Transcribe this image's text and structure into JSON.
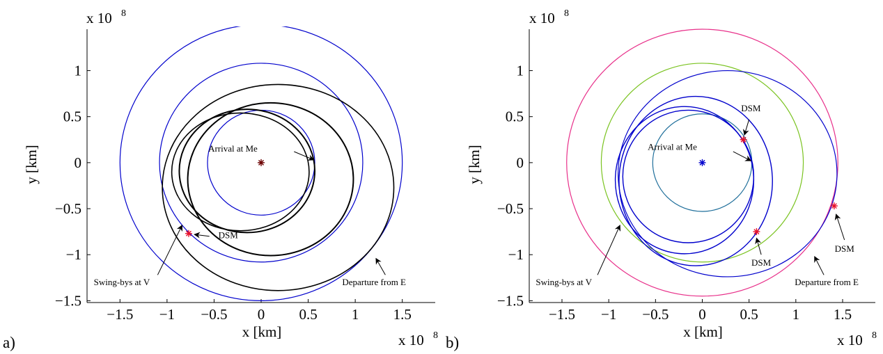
{
  "chart_data": [
    {
      "type": "line",
      "panel_label": "a)",
      "xlabel": "x [km]",
      "ylabel": "y [km]",
      "x_exponent_label": "x 10",
      "x_exponent_power": "8",
      "y_exponent_label": "x 10",
      "y_exponent_power": "8",
      "xlim": [
        -1.85,
        1.85
      ],
      "ylim": [
        -1.52,
        1.45
      ],
      "xticks": [
        -1.5,
        -1,
        -0.5,
        0,
        0.5,
        1,
        1.5
      ],
      "xtick_labels": [
        "−1.5",
        "−1",
        "−0.5",
        "0",
        "0.5",
        "1",
        "1.5"
      ],
      "yticks": [
        -1.5,
        -1,
        -0.5,
        0,
        0.5,
        1
      ],
      "ytick_labels": [
        "−1.5",
        "−1",
        "−0.5",
        "0",
        "0.5",
        "1"
      ],
      "grid": false,
      "colors": {
        "planet_orbit": "#0000cc",
        "trajectory": "#000000",
        "dsm_marker": "#e8102a",
        "sun_marker": "#6b0000"
      },
      "circles": [
        {
          "role": "planet orbit",
          "cx": 0,
          "cy": 0,
          "r": 1.5,
          "color": "#0000cc"
        },
        {
          "role": "planet orbit",
          "cx": 0,
          "cy": 0,
          "r": 1.08,
          "color": "#0000cc"
        },
        {
          "role": "planet orbit",
          "cx": 0,
          "cy": 0,
          "r": 0.57,
          "color": "#0000cc"
        }
      ],
      "ellipses": [
        {
          "role": "trajectory arc",
          "cx": 0.18,
          "cy": -0.27,
          "rx": 1.23,
          "ry": 1.12,
          "color": "#000000",
          "width": 1.6
        },
        {
          "role": "trajectory arc",
          "cx": 0.1,
          "cy": -0.18,
          "rx": 0.88,
          "ry": 0.83,
          "color": "#000000",
          "width": 2.0
        },
        {
          "role": "trajectory arc",
          "cx": -0.15,
          "cy": -0.09,
          "rx": 0.72,
          "ry": 0.67,
          "color": "#000000",
          "width": 2.0
        },
        {
          "role": "trajectory arc",
          "cx": -0.22,
          "cy": -0.1,
          "rx": 0.73,
          "ry": 0.64,
          "color": "#000000",
          "width": 1.6
        }
      ],
      "markers": [
        {
          "label": "Sun",
          "x": 0,
          "y": 0,
          "color": "#6b0000"
        },
        {
          "label": "DSM",
          "x": -0.77,
          "y": -0.77,
          "color": "#e8102a"
        }
      ],
      "annotations": [
        {
          "text": "Arrival at Me",
          "text_x": -0.3,
          "text_y": 0.12,
          "arrow_from": [
            0.35,
            0.12
          ],
          "arrow_to": [
            0.56,
            0.03
          ]
        },
        {
          "text": "DSM",
          "text_x": -0.35,
          "text_y": -0.82,
          "arrow_from": [
            -0.55,
            -0.8
          ],
          "arrow_to": [
            -0.71,
            -0.78
          ]
        },
        {
          "text": "Swing-bys at V",
          "text_x": -1.48,
          "text_y": -1.33,
          "arrow_from": [
            -1.1,
            -1.22
          ],
          "arrow_to": [
            -0.84,
            -0.68
          ]
        },
        {
          "text": "Departure from E",
          "text_x": 1.2,
          "text_y": -1.33,
          "arrow_from": [
            1.32,
            -1.22
          ],
          "arrow_to": [
            1.22,
            -1.04
          ]
        }
      ]
    },
    {
      "type": "line",
      "panel_label": "b)",
      "xlabel": "x [km]",
      "ylabel": "y [km]",
      "x_exponent_label": "x 10",
      "x_exponent_power": "8",
      "y_exponent_label": "x 10",
      "y_exponent_power": "8",
      "xlim": [
        -1.85,
        1.85
      ],
      "ylim": [
        -1.52,
        1.45
      ],
      "xticks": [
        -1.5,
        -1,
        -0.5,
        0,
        0.5,
        1,
        1.5
      ],
      "xtick_labels": [
        "−1.5",
        "−1",
        "−0.5",
        "0",
        "0.5",
        "1",
        "1.5"
      ],
      "yticks": [
        -1.5,
        -1,
        -0.5,
        0,
        0.5,
        1
      ],
      "ytick_labels": [
        "−1.5",
        "−1",
        "−0.5",
        "0",
        "0.5",
        "1"
      ],
      "grid": false,
      "colors": {
        "earth_orbit": "#e8308a",
        "venus_orbit": "#7ac320",
        "mercury_orbit": "#1e6e9a",
        "trajectory": "#0000cc",
        "dsm_marker": "#e8102a",
        "sun_marker": "#0000cc"
      },
      "circles": [
        {
          "role": "Earth orbit",
          "cx": 0,
          "cy": 0,
          "r": 1.45,
          "color": "#e8308a"
        },
        {
          "role": "Venus orbit",
          "cx": 0,
          "cy": 0,
          "r": 1.08,
          "color": "#7ac320"
        },
        {
          "role": "Mercury orbit",
          "cx": 0,
          "cy": 0,
          "r": 0.53,
          "color": "#1e6e9a"
        }
      ],
      "ellipses": [
        {
          "role": "trajectory arc",
          "cx": 0.27,
          "cy": -0.12,
          "rx": 1.17,
          "ry": 1.12,
          "color": "#0000cc",
          "width": 1.2
        },
        {
          "role": "trajectory arc",
          "cx": -0.07,
          "cy": -0.2,
          "rx": 0.82,
          "ry": 0.92,
          "color": "#0000cc",
          "width": 1.4
        },
        {
          "role": "trajectory arc",
          "cx": -0.19,
          "cy": -0.19,
          "rx": 0.74,
          "ry": 0.8,
          "color": "#0000cc",
          "width": 1.4
        },
        {
          "role": "trajectory arc",
          "cx": -0.15,
          "cy": -0.15,
          "rx": 0.7,
          "ry": 0.72,
          "color": "#0000cc",
          "width": 1.4
        }
      ],
      "markers": [
        {
          "label": "Sun",
          "x": 0,
          "y": 0,
          "color": "#0000cc"
        },
        {
          "label": "DSM",
          "x": 0.44,
          "y": 0.25,
          "color": "#e8102a"
        },
        {
          "label": "DSM",
          "x": 0.58,
          "y": -0.75,
          "color": "#e8102a"
        },
        {
          "label": "DSM",
          "x": 1.41,
          "y": -0.47,
          "color": "#e8102a"
        }
      ],
      "annotations": [
        {
          "text": "DSM",
          "text_x": 0.52,
          "text_y": 0.56,
          "arrow_from": [
            0.5,
            0.47
          ],
          "arrow_to": [
            0.45,
            0.3
          ]
        },
        {
          "text": "Arrival at Me",
          "text_x": -0.32,
          "text_y": 0.14,
          "arrow_from": [
            0.33,
            0.12
          ],
          "arrow_to": [
            0.52,
            0.02
          ]
        },
        {
          "text": "Swing-bys at V",
          "text_x": -1.48,
          "text_y": -1.33,
          "arrow_from": [
            -1.12,
            -1.22
          ],
          "arrow_to": [
            -0.88,
            -0.68
          ]
        },
        {
          "text": "DSM",
          "text_x": 0.63,
          "text_y": -1.12,
          "arrow_from": [
            0.63,
            -1.0
          ],
          "arrow_to": [
            0.58,
            -0.82
          ]
        },
        {
          "text": "DSM",
          "text_x": 1.52,
          "text_y": -0.97,
          "arrow_from": [
            1.52,
            -0.84
          ],
          "arrow_to": [
            1.43,
            -0.56
          ]
        },
        {
          "text": "Departure from E",
          "text_x": 1.33,
          "text_y": -1.33,
          "arrow_from": [
            1.3,
            -1.22
          ],
          "arrow_to": [
            1.2,
            -1.02
          ]
        }
      ]
    }
  ]
}
